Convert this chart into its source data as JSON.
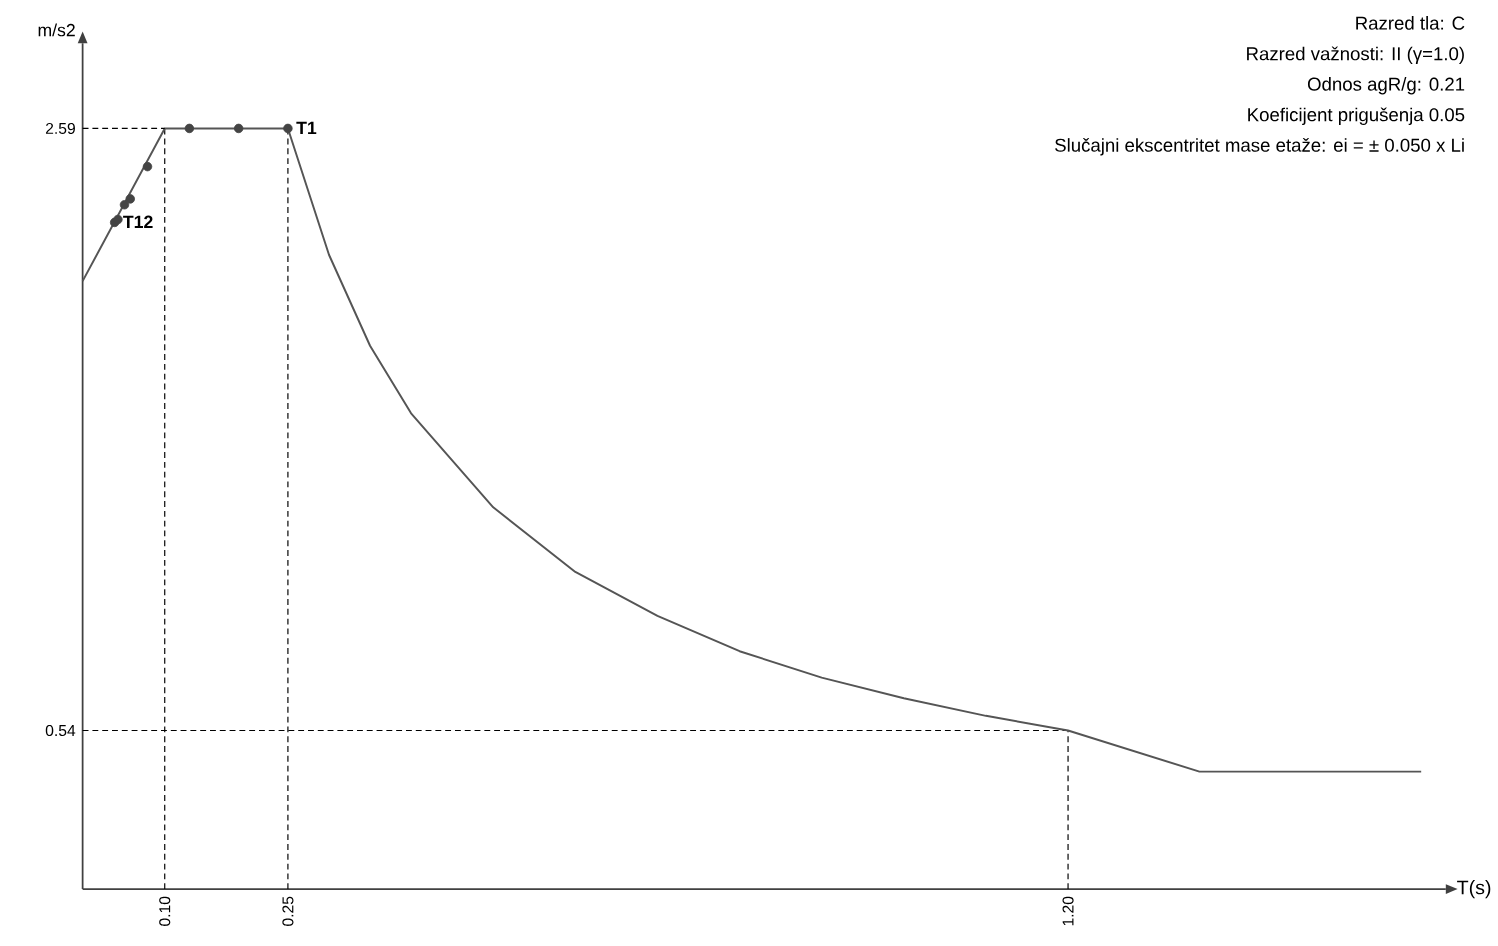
{
  "chart_data": {
    "type": "line",
    "xlabel": "T(s)",
    "ylabel": "m/s2",
    "xlim": [
      0,
      1.66
    ],
    "ylim": [
      0,
      2.88
    ],
    "xticks": [
      {
        "value": 0.1,
        "label": "0.10"
      },
      0.25,
      {
        "value": 1.2,
        "label": "1.20"
      }
    ],
    "yticks": [
      0.54,
      2.59
    ],
    "grid": false,
    "series": [
      {
        "color": "#555555",
        "line_style": "solid",
        "marker": "none",
        "x": [
          0,
          0.1,
          0.25,
          0.3,
          0.35,
          0.4,
          0.5,
          0.6,
          0.7,
          0.8,
          0.9,
          1.0,
          1.1,
          1.2,
          1.36,
          1.63
        ],
        "values": [
          2.07,
          2.59,
          2.59,
          2.16,
          1.85,
          1.62,
          1.3,
          1.08,
          0.93,
          0.81,
          0.72,
          0.65,
          0.59,
          0.54,
          0.4,
          0.4
        ]
      },
      {
        "type": "line",
        "color": "#000000",
        "line_style": "dashed",
        "marker": "none",
        "x": [
          0,
          0.1
        ],
        "values": [
          2.59,
          2.59
        ]
      },
      {
        "type": "scatter",
        "color": "#444444",
        "marker": "circle",
        "x": [
          0.039,
          0.043,
          0.051,
          0.058,
          0.079,
          0.13,
          0.19,
          0.25
        ],
        "values": [
          2.27,
          2.28,
          2.33,
          2.35,
          2.46,
          2.59,
          2.59,
          2.59
        ]
      }
    ],
    "ref_lines": [
      {
        "axis": "y",
        "value": 0.54,
        "line_style": "dashed"
      },
      {
        "axis": "x",
        "value": 0.1,
        "line_style": "dashed"
      },
      {
        "axis": "x",
        "value": 0.25,
        "line_style": "dashed"
      },
      {
        "axis": "x",
        "value": 1.2,
        "line_style": "dashed"
      }
    ],
    "annotations": [
      "Razred tla: C",
      "Razred važnosti: II (γ=1.0)",
      "Odnos agR/g: 0.21",
      "Koeficijent prigušenja 0.05",
      "Slučajni ekscentritet mase etaže: ei = ± 0.050 x Li",
      {
        "text": "T1",
        "x": 0.25,
        "y": 2.59
      },
      {
        "text": "T12",
        "x": 0.039,
        "y": 2.27
      }
    ]
  }
}
